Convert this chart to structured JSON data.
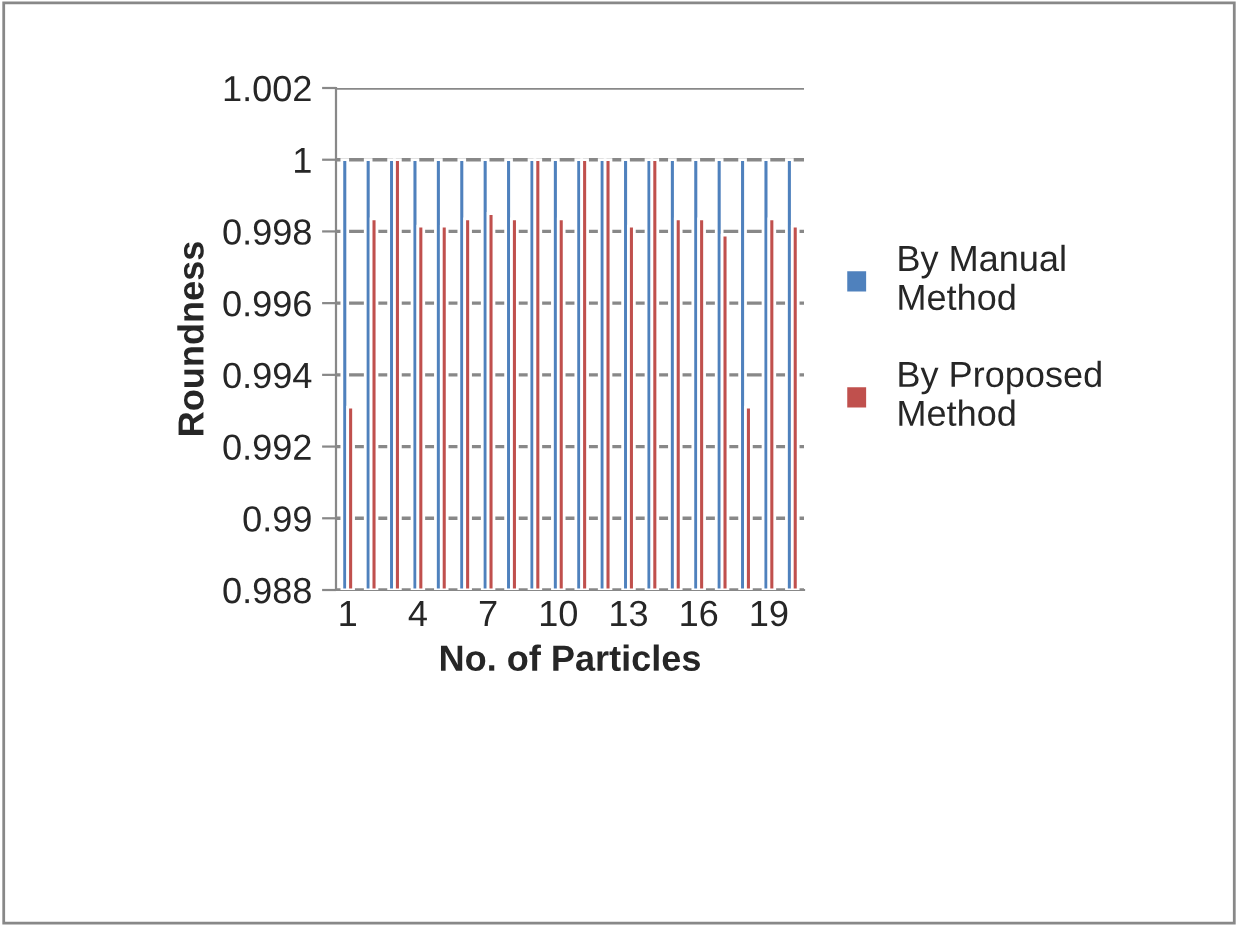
{
  "chart_data": {
    "type": "bar",
    "xlabel": "No. of Particles",
    "ylabel": "Roundness",
    "categories": [
      "1",
      null,
      null,
      "4",
      null,
      null,
      "7",
      null,
      null,
      "10",
      null,
      null,
      "13",
      null,
      null,
      "16",
      null,
      null,
      "19",
      null
    ],
    "series": [
      {
        "name": "By Manual Method",
        "color": "#4f81bd",
        "values": [
          1,
          1,
          1,
          1,
          1,
          1,
          1,
          1,
          1,
          1,
          1,
          1,
          1,
          1,
          1,
          1,
          1,
          1,
          1,
          1
        ]
      },
      {
        "name": "By Proposed Method",
        "color": "#c0504d",
        "values": [
          0.9931,
          0.99835,
          1,
          0.99815,
          0.99815,
          0.99835,
          0.9985,
          0.99835,
          1,
          0.99835,
          1,
          1,
          0.99815,
          1,
          0.99835,
          0.99835,
          0.9979,
          0.9931,
          0.99835,
          0.99815
        ]
      }
    ],
    "ylim": [
      0.988,
      1.002
    ],
    "yticks": [
      {
        "value": 0.988,
        "label": "0.988"
      },
      {
        "value": 0.99,
        "label": "0.99"
      },
      {
        "value": 0.992,
        "label": "0.992"
      },
      {
        "value": 0.994,
        "label": "0.994"
      },
      {
        "value": 0.996,
        "label": "0.996"
      },
      {
        "value": 0.998,
        "label": "0.998"
      },
      {
        "value": 1,
        "label": "1"
      },
      {
        "value": 1.002,
        "label": "1.002"
      }
    ],
    "grid": "y",
    "legend": "right"
  }
}
